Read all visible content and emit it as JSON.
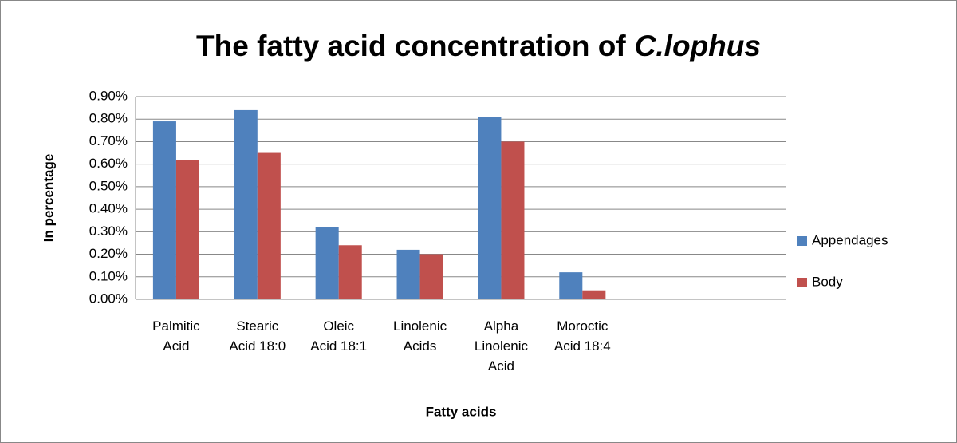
{
  "chart_data": {
    "type": "bar",
    "title": {
      "text": "The fatty acid concentration of",
      "species": "C.lophus"
    },
    "x_label": "Fatty acids",
    "y_label": "In percentage",
    "categories": [
      "Palmitic Acid",
      "Stearic Acid 18:0",
      "Oleic Acid 18:1",
      "Linolenic Acids",
      "Alpha Linolenic Acid",
      "Moroctic Acid 18:4",
      null,
      null
    ],
    "series": [
      {
        "name": "Appendages",
        "color": "#4f81bd",
        "values": [
          0.79,
          0.84,
          0.32,
          0.22,
          0.81,
          0.12,
          null,
          null
        ]
      },
      {
        "name": "Body",
        "color": "#c0504d",
        "values": [
          0.62,
          0.65,
          0.24,
          0.2,
          0.7,
          0.04,
          null,
          null
        ]
      }
    ],
    "ylim": [
      0,
      0.9
    ],
    "yticks": [
      {
        "value": 0,
        "label": "0.00%"
      },
      {
        "value": 0.1,
        "label": "0.10%"
      },
      {
        "value": 0.2,
        "label": "0.20%"
      },
      {
        "value": 0.3,
        "label": "0.30%"
      },
      {
        "value": 0.4,
        "label": "0.40%"
      },
      {
        "value": 0.5,
        "label": "0.50%"
      },
      {
        "value": 0.6,
        "label": "0.60%"
      },
      {
        "value": 0.7,
        "label": "0.70%"
      },
      {
        "value": 0.8,
        "label": "0.80%"
      },
      {
        "value": 0.9,
        "label": "0.90%"
      }
    ],
    "grid": true,
    "legend": "right"
  }
}
